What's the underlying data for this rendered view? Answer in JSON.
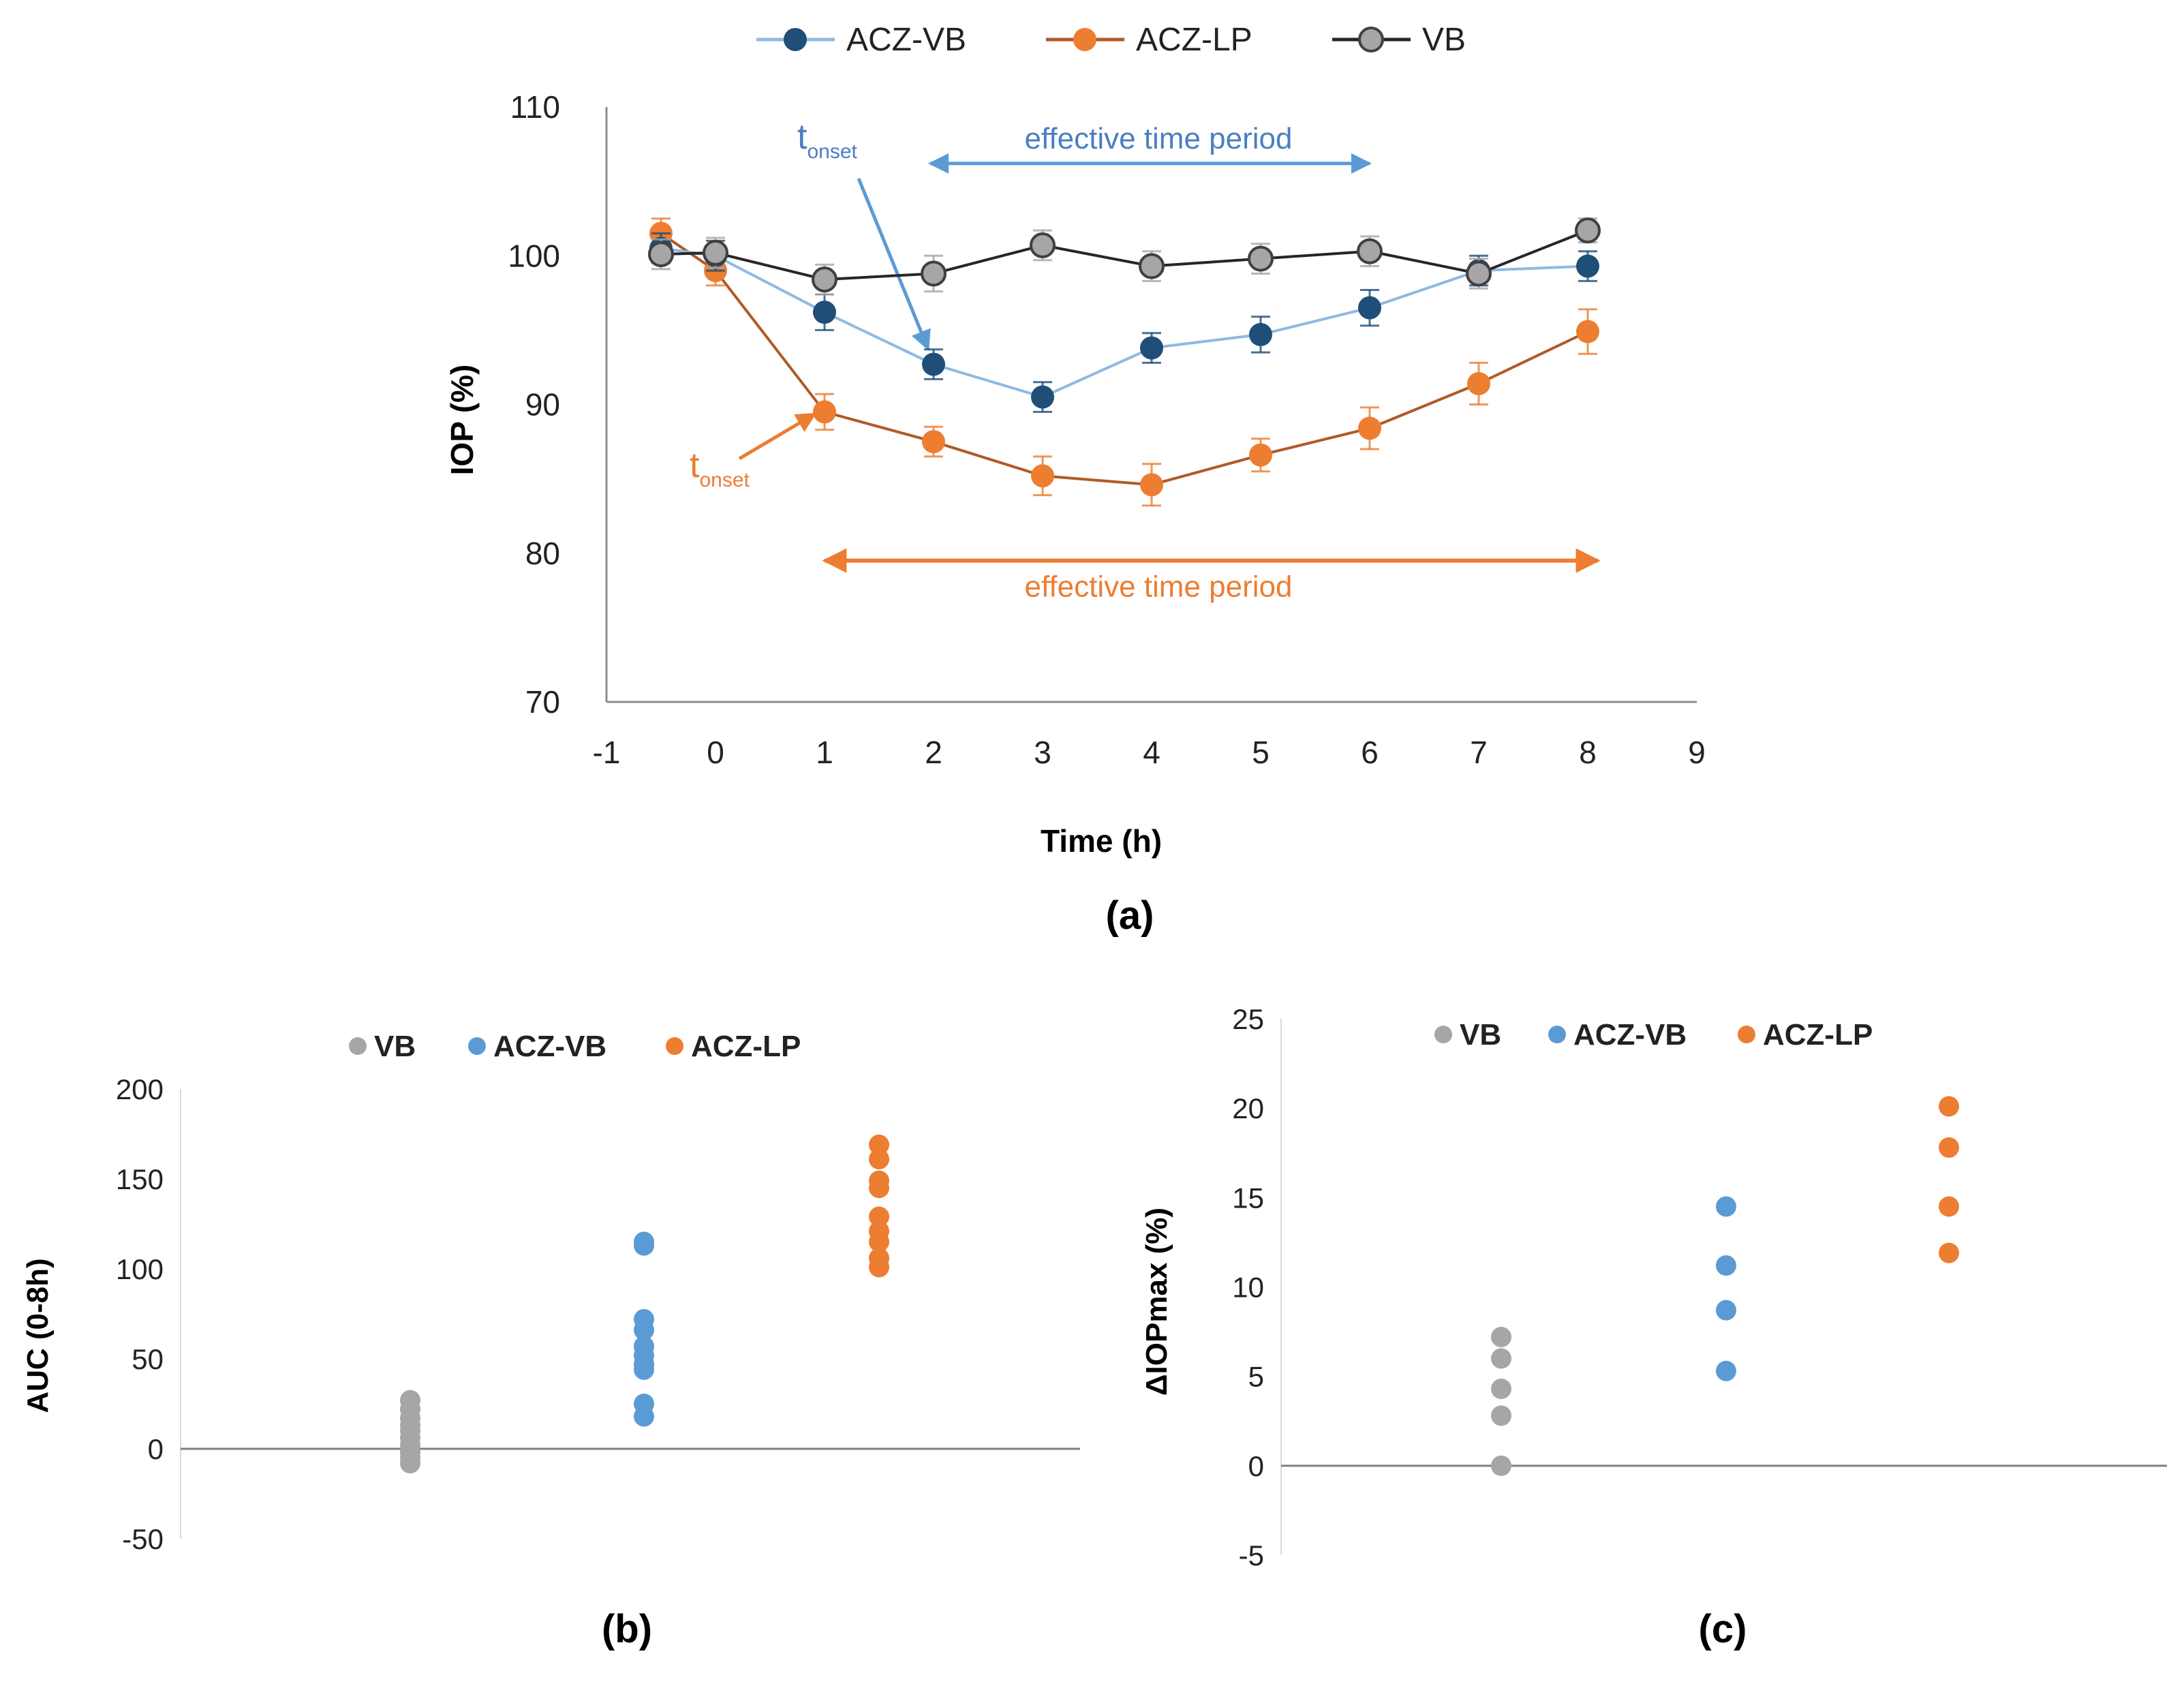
{
  "chart_data": [
    {
      "panel": "(a)",
      "type": "line",
      "xlabel": "Time  (h)",
      "ylabel": "IOP (%)",
      "xlim": [
        -1,
        9
      ],
      "ylim": [
        70,
        110
      ],
      "x_ticks": [
        -1,
        0,
        1,
        2,
        3,
        4,
        5,
        6,
        7,
        8,
        9
      ],
      "y_ticks": [
        70,
        80,
        90,
        100,
        110
      ],
      "legend_position": "top-center",
      "series": [
        {
          "name": "ACZ-VB",
          "color": "#1f4e79",
          "line_color": "#8fb9e2",
          "x": [
            -0.5,
            0,
            1,
            2,
            3,
            4,
            5,
            6,
            7,
            8
          ],
          "values": [
            100.5,
            100.0,
            96.2,
            92.7,
            90.5,
            93.8,
            94.7,
            96.5,
            99.0,
            99.3
          ],
          "error": [
            1.0,
            1.0,
            1.2,
            1.0,
            1.0,
            1.0,
            1.2,
            1.2,
            1.0,
            1.0
          ]
        },
        {
          "name": "ACZ-LP",
          "color": "#ed7d31",
          "line_color": "#b05a25",
          "x": [
            -0.5,
            0,
            1,
            2,
            3,
            4,
            5,
            6,
            7,
            8
          ],
          "values": [
            101.5,
            99.0,
            89.5,
            87.5,
            85.2,
            84.6,
            86.6,
            88.4,
            91.4,
            94.9
          ],
          "error": [
            1.0,
            1.0,
            1.2,
            1.0,
            1.3,
            1.4,
            1.1,
            1.4,
            1.4,
            1.5
          ]
        },
        {
          "name": "VB",
          "color": "#a6a6a6",
          "line_color": "#262626",
          "x": [
            -0.5,
            0,
            1,
            2,
            3,
            4,
            5,
            6,
            7,
            8
          ],
          "values": [
            100.1,
            100.2,
            98.4,
            98.8,
            100.7,
            99.3,
            99.8,
            100.3,
            98.8,
            101.7
          ],
          "error": [
            1.0,
            1.0,
            1.0,
            1.2,
            1.0,
            1.0,
            1.0,
            1.0,
            1.0,
            0.8
          ]
        }
      ],
      "annotations": {
        "blue_onset_main": "t",
        "blue_onset_sub": "onset",
        "blue_onset_at": [
          2,
          93.5
        ],
        "blue_period_label": "effective time period",
        "blue_period_range": [
          2,
          6
        ],
        "blue_period_y": 106.2,
        "orange_onset_main": "t",
        "orange_onset_sub": "onset",
        "orange_onset_at": [
          1,
          89.6
        ],
        "orange_period_label": "effective time period",
        "orange_period_range": [
          1,
          8
        ],
        "orange_period_y": 79.5
      },
      "caption": "(a)"
    },
    {
      "panel": "(b)",
      "type": "scatter",
      "ylabel": "AUC (0-8h)",
      "ylim": [
        -50,
        200
      ],
      "y_ticks": [
        -50,
        0,
        50,
        100,
        150,
        200
      ],
      "legend_position": "top-center",
      "series": [
        {
          "name": "VB",
          "color": "#a6a6a6",
          "x": 1,
          "values": [
            27,
            22,
            17,
            13,
            10,
            6,
            2,
            -2,
            -5,
            -8
          ]
        },
        {
          "name": "ACZ-VB",
          "color": "#5b9bd5",
          "x": 2,
          "values": [
            115,
            113,
            72,
            66,
            57,
            52,
            47,
            44,
            25,
            18
          ]
        },
        {
          "name": "ACZ-LP",
          "color": "#ed7d31",
          "x": 3,
          "values": [
            169,
            161,
            149,
            145,
            129,
            121,
            115,
            106,
            101
          ]
        }
      ],
      "caption": "(b)"
    },
    {
      "panel": "(c)",
      "type": "scatter",
      "ylabel": "ΔIOPmax  (%)",
      "ylim": [
        -5,
        25
      ],
      "y_ticks": [
        -5,
        0,
        5,
        10,
        15,
        20,
        25
      ],
      "legend_position": "top-center",
      "series": [
        {
          "name": "VB",
          "color": "#a6a6a6",
          "x": 1,
          "values": [
            7.2,
            6.0,
            4.3,
            2.8,
            0.0
          ]
        },
        {
          "name": "ACZ-VB",
          "color": "#5b9bd5",
          "x": 2,
          "values": [
            14.5,
            11.2,
            8.7,
            5.3
          ]
        },
        {
          "name": "ACZ-LP",
          "color": "#ed7d31",
          "x": 3,
          "values": [
            20.1,
            17.8,
            14.5,
            11.9
          ]
        }
      ],
      "caption": "(c)"
    }
  ]
}
